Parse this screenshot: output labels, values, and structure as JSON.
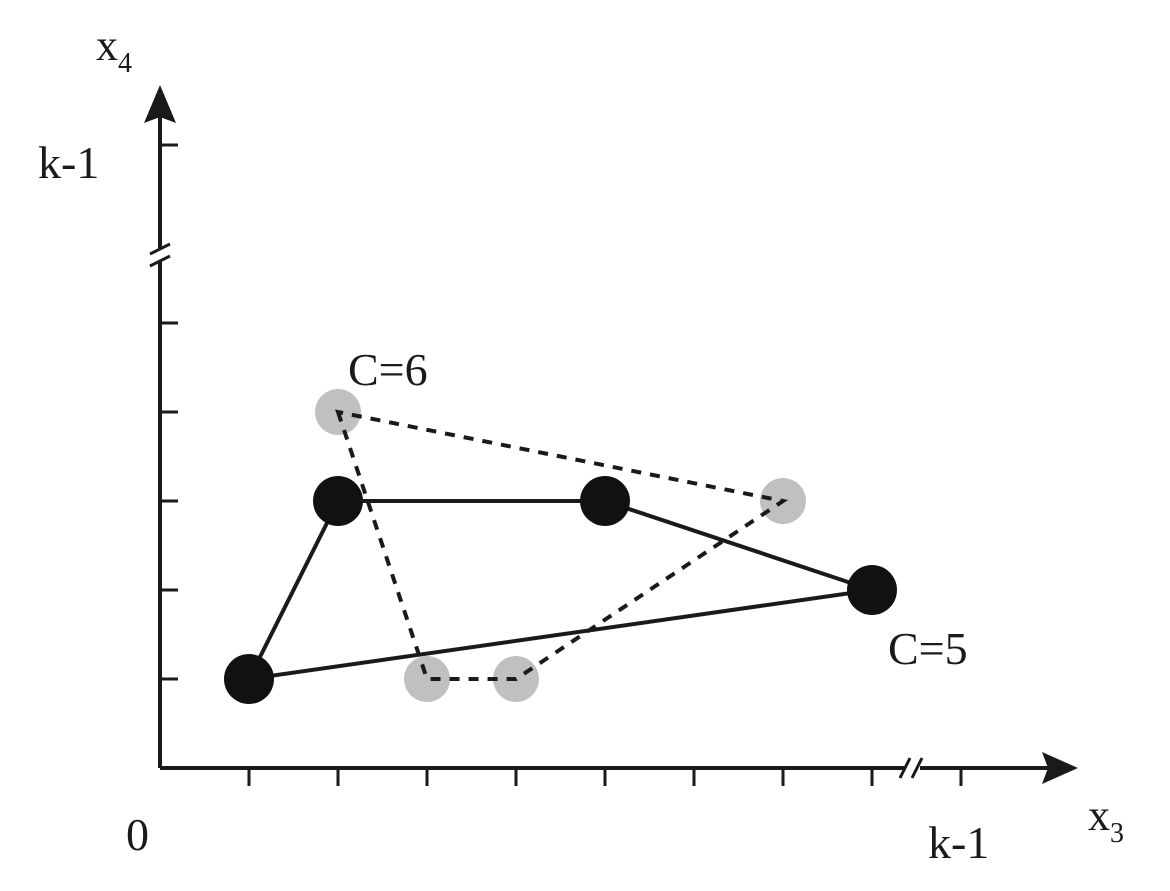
{
  "axes": {
    "x_label": "x",
    "x_subscript": "3",
    "y_label": "x",
    "y_subscript": "4",
    "origin_label": "0",
    "x_max_label": "k-1",
    "y_max_label": "k-1",
    "x_ticks": [
      1,
      2,
      3,
      4,
      5,
      6,
      7,
      8
    ],
    "y_ticks": [
      1,
      2,
      3,
      4,
      5
    ],
    "x_end_value": 9,
    "y_end_value": 7,
    "axis_breaks": true
  },
  "polygons": [
    {
      "label": "C=5",
      "style": "solid",
      "vertex_color": "#111111",
      "points": [
        [
          1,
          1
        ],
        [
          2,
          3
        ],
        [
          5,
          3
        ],
        [
          8,
          2
        ]
      ]
    },
    {
      "label": "C=6",
      "style": "dashed",
      "vertex_color": "#c0c0c0",
      "points": [
        [
          2,
          4
        ],
        [
          3,
          1
        ],
        [
          4,
          1
        ],
        [
          7,
          3
        ]
      ]
    }
  ],
  "colors": {
    "axis": "#1a1a1a",
    "solid_line": "#1a1a1a",
    "dashed_line": "#1a1a1a"
  }
}
